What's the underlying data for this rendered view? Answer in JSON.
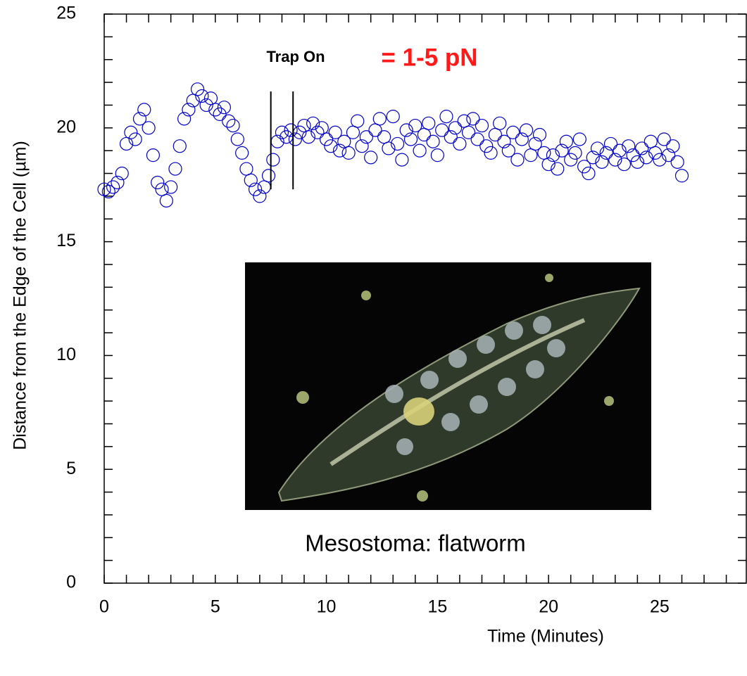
{
  "chart_data": {
    "type": "scatter",
    "x_label": "Time (Minutes)",
    "y_label": "Distance from the Edge of the Cell (µm)",
    "annotations": {
      "trap": "Trap On",
      "force": "= 1-5 pN",
      "caption": "Mesostoma: flatworm"
    },
    "xlim": [
      0,
      28.9
    ],
    "ylim": [
      0,
      25
    ],
    "xticks": [
      0,
      5,
      10,
      15,
      20,
      25
    ],
    "yticks": [
      0,
      5,
      10,
      15,
      20,
      25
    ],
    "xminor_ticks": [
      1,
      2,
      3,
      4,
      6,
      7,
      8,
      9,
      11,
      12,
      13,
      14,
      16,
      17,
      18,
      19,
      21,
      22,
      23,
      24,
      26,
      27,
      28
    ],
    "yminor_ticks": [
      1,
      2,
      3,
      4,
      6,
      7,
      8,
      9,
      11,
      12,
      13,
      14,
      16,
      17,
      18,
      19,
      21,
      22,
      23,
      24
    ],
    "marker_color": "#0000cc",
    "trap_lines": {
      "x": [
        7.5,
        8.5
      ],
      "y": [
        17.3,
        21.6
      ]
    },
    "x": [
      0,
      0.2,
      0.4,
      0.6,
      0.8,
      1,
      1.2,
      1.4,
      1.6,
      1.8,
      2,
      2.2,
      2.4,
      2.6,
      2.8,
      3,
      3.2,
      3.4,
      3.6,
      3.8,
      4,
      4.2,
      4.4,
      4.6,
      4.8,
      5,
      5.2,
      5.4,
      5.6,
      5.8,
      6,
      6.2,
      6.4,
      6.6,
      6.8,
      7,
      7.2,
      7.4,
      7.6,
      7.8,
      8,
      8.2,
      8.4,
      8.6,
      8.8,
      9,
      9.2,
      9.4,
      9.6,
      9.8,
      10,
      10.2,
      10.4,
      10.6,
      10.8,
      11,
      11.2,
      11.4,
      11.6,
      11.8,
      12,
      12.2,
      12.4,
      12.6,
      12.8,
      13,
      13.2,
      13.4,
      13.6,
      13.8,
      14,
      14.2,
      14.4,
      14.6,
      14.8,
      15,
      15.2,
      15.4,
      15.6,
      15.8,
      16,
      16.2,
      16.4,
      16.6,
      16.8,
      17,
      17.2,
      17.4,
      17.6,
      17.8,
      18,
      18.2,
      18.4,
      18.6,
      18.8,
      19,
      19.2,
      19.4,
      19.6,
      19.8,
      20,
      20.2,
      20.4,
      20.6,
      20.8,
      21,
      21.2,
      21.4,
      21.6,
      21.8,
      22,
      22.2,
      22.4,
      22.6,
      22.8,
      23,
      23.2,
      23.4,
      23.6,
      23.8,
      24,
      24.2,
      24.4,
      24.6,
      24.8,
      25,
      25.2,
      25.4,
      25.6,
      25.8,
      26
    ],
    "values": [
      17.3,
      17.2,
      17.4,
      17.6,
      18.0,
      19.3,
      19.8,
      19.5,
      20.4,
      20.8,
      20.0,
      18.8,
      17.6,
      17.3,
      16.8,
      17.4,
      18.2,
      19.2,
      20.4,
      20.8,
      21.2,
      21.7,
      21.4,
      21.0,
      21.3,
      20.8,
      20.6,
      20.9,
      20.3,
      20.1,
      19.5,
      18.9,
      18.2,
      17.7,
      17.3,
      17.0,
      17.4,
      17.9,
      18.6,
      19.4,
      19.8,
      19.6,
      19.9,
      19.5,
      19.8,
      20.1,
      19.6,
      20.2,
      19.8,
      20.0,
      19.5,
      19.2,
      19.8,
      19.0,
      19.4,
      18.9,
      19.8,
      20.3,
      19.2,
      19.6,
      18.7,
      19.9,
      20.4,
      19.6,
      19.1,
      20.5,
      19.3,
      18.6,
      19.9,
      19.5,
      20.1,
      19.0,
      19.7,
      20.2,
      19.4,
      18.8,
      19.9,
      20.5,
      19.6,
      20.0,
      19.3,
      20.3,
      19.8,
      20.4,
      19.5,
      20.1,
      19.2,
      18.9,
      19.7,
      20.2,
      19.4,
      19.0,
      19.8,
      18.6,
      19.5,
      19.9,
      18.8,
      19.3,
      19.7,
      18.9,
      18.4,
      18.8,
      18.2,
      19.0,
      19.4,
      18.6,
      18.9,
      19.5,
      18.3,
      18.0,
      18.7,
      19.1,
      18.5,
      18.9,
      19.3,
      18.6,
      19.0,
      18.4,
      19.2,
      18.8,
      18.5,
      19.1,
      18.7,
      19.4,
      18.9,
      18.6,
      19.5,
      18.8,
      19.2,
      18.5,
      17.9
    ]
  }
}
